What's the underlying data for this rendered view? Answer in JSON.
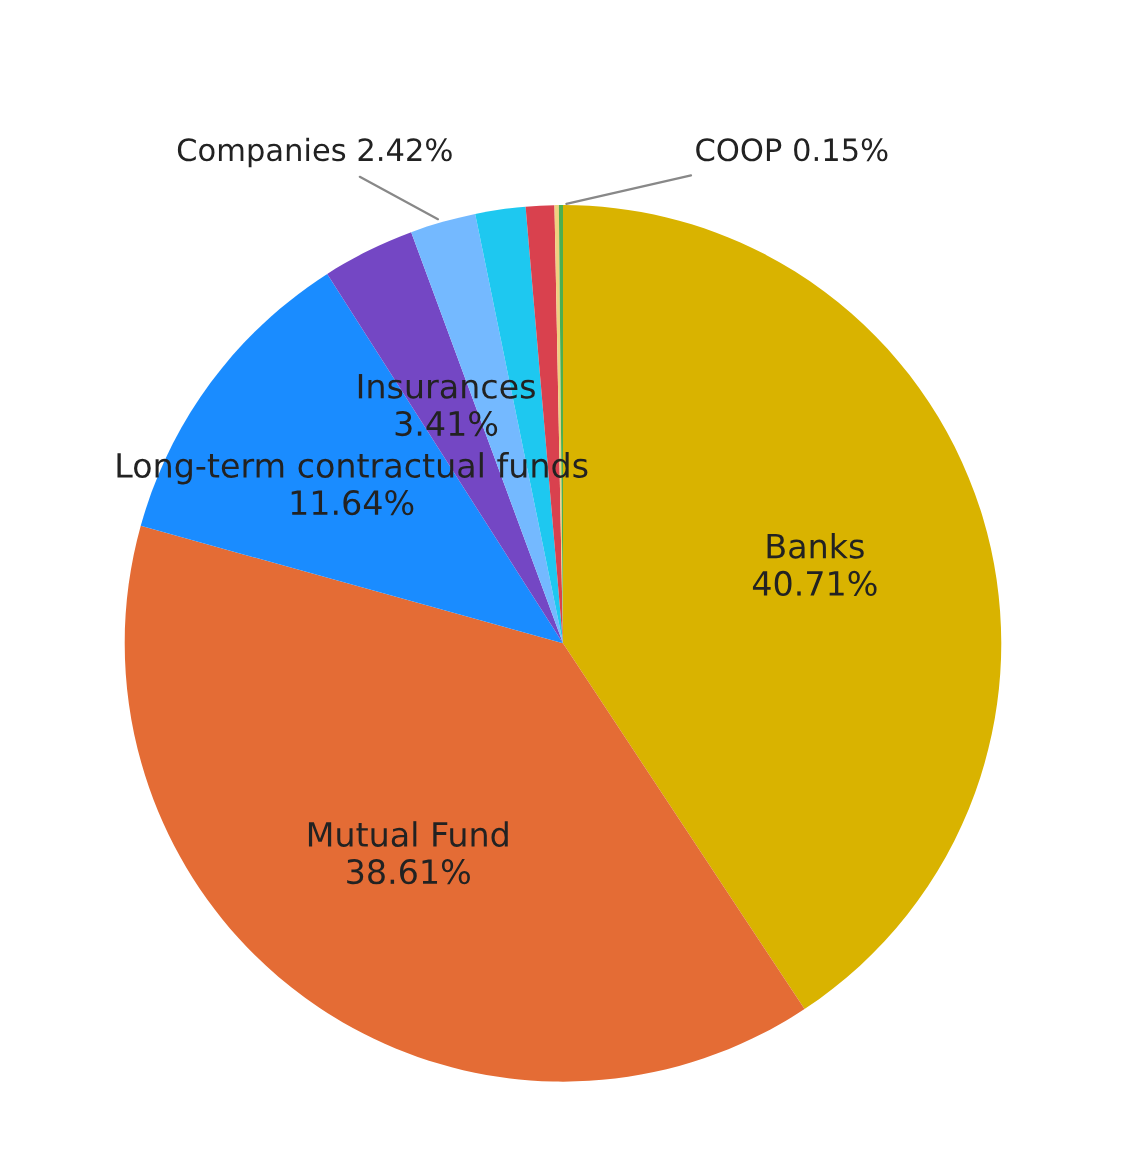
{
  "chart_data": {
    "type": "pie",
    "categories": [
      "Banks",
      "Mutual Fund",
      "Long-term contractual funds",
      "Insurances",
      "Companies",
      null,
      null,
      null,
      "COOP"
    ],
    "values": [
      40.71,
      38.61,
      11.64,
      3.41,
      2.42,
      1.85,
      1.05,
      0.16,
      0.15
    ],
    "value_labels": [
      "40.71%",
      "38.61%",
      "11.64%",
      "3.41%",
      "2.42%",
      null,
      null,
      null,
      "0.15%"
    ],
    "colors": [
      "#d9b300",
      "#e46c35",
      "#1a8cff",
      "#7447c4",
      "#74b9ff",
      "#1ec8f0",
      "#d9414e",
      "#f0d080",
      "#4caf50"
    ]
  }
}
